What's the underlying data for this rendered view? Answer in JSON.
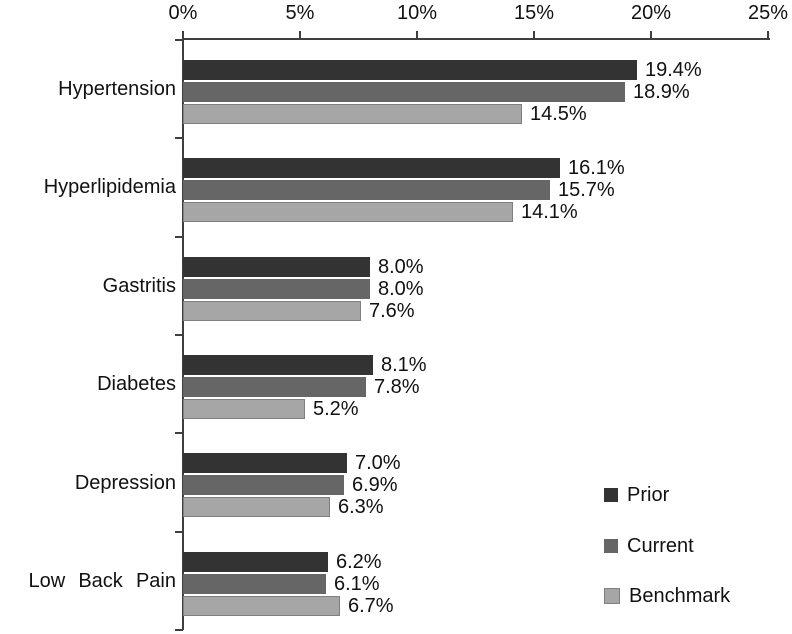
{
  "chart_data": {
    "type": "bar",
    "orientation": "horizontal",
    "title": "",
    "xlabel": "",
    "ylabel": "",
    "value_axis": {
      "position": "top",
      "min": 0,
      "max": 25,
      "tick_step": 5,
      "tick_labels": [
        "0%",
        "5%",
        "10%",
        "15%",
        "20%",
        "25%"
      ]
    },
    "grid": false,
    "categories": [
      "Hypertension",
      "Hyperlipidemia",
      "Gastritis",
      "Diabetes",
      "Depression",
      "Low Back Pain"
    ],
    "series": [
      {
        "name": "Prior",
        "color": "#333333",
        "values": [
          19.4,
          16.1,
          8.0,
          8.1,
          7.0,
          6.2
        ],
        "labels": [
          "19.4%",
          "16.1%",
          "8.0%",
          "8.1%",
          "7.0%",
          "6.2%"
        ]
      },
      {
        "name": "Current",
        "color": "#666666",
        "values": [
          18.9,
          15.7,
          8.0,
          7.8,
          6.9,
          6.1
        ],
        "labels": [
          "18.9%",
          "15.7%",
          "8.0%",
          "7.8%",
          "6.9%",
          "6.1%"
        ]
      },
      {
        "name": "Benchmark",
        "color": "#a6a6a6",
        "border_color": "#7f7f7f",
        "values": [
          14.5,
          14.1,
          7.6,
          5.2,
          6.3,
          6.7
        ],
        "labels": [
          "14.5%",
          "14.1%",
          "7.6%",
          "5.2%",
          "6.3%",
          "6.7%"
        ]
      }
    ],
    "legend": {
      "position": "bottom-right",
      "entries": [
        "Prior",
        "Current",
        "Benchmark"
      ]
    }
  }
}
